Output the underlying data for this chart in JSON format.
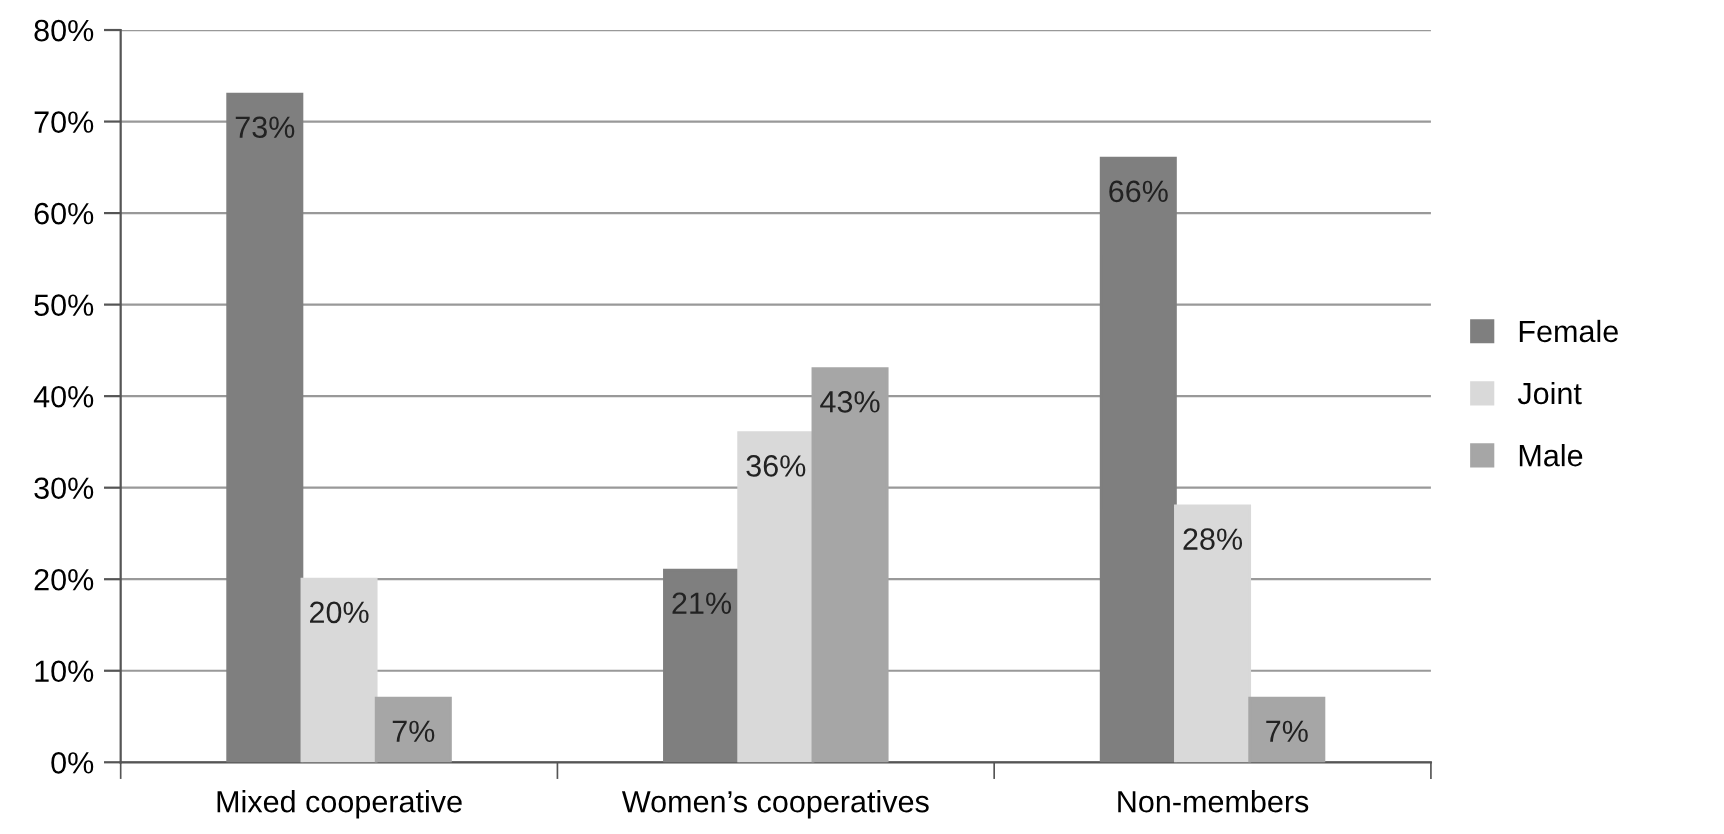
{
  "chart_data": {
    "type": "bar",
    "categories": [
      "Mixed cooperative",
      "Women’s cooperatives",
      "Non-members"
    ],
    "series": [
      {
        "name": "Female",
        "color": "#7f7f7f",
        "values": [
          73,
          21,
          66
        ],
        "value_labels": [
          "73%",
          "21%",
          "66%"
        ]
      },
      {
        "name": "Joint",
        "color": "#d9d9d9",
        "values": [
          20,
          36,
          28
        ],
        "value_labels": [
          "20%",
          "36%",
          "28%"
        ]
      },
      {
        "name": "Male",
        "color": "#a6a6a6",
        "values": [
          7,
          43,
          7
        ],
        "value_labels": [
          "7%",
          "43%",
          "7%"
        ]
      }
    ],
    "ylim": [
      0,
      80
    ],
    "yticks": [
      {
        "value": 0,
        "label": "0%"
      },
      {
        "value": 10,
        "label": "10%"
      },
      {
        "value": 20,
        "label": "20%"
      },
      {
        "value": 30,
        "label": "30%"
      },
      {
        "value": 40,
        "label": "40%"
      },
      {
        "value": 50,
        "label": "50%"
      },
      {
        "value": 60,
        "label": "60%"
      },
      {
        "value": 70,
        "label": "70%"
      },
      {
        "value": 80,
        "label": "80%"
      }
    ],
    "grid": "y",
    "legend": "right"
  }
}
